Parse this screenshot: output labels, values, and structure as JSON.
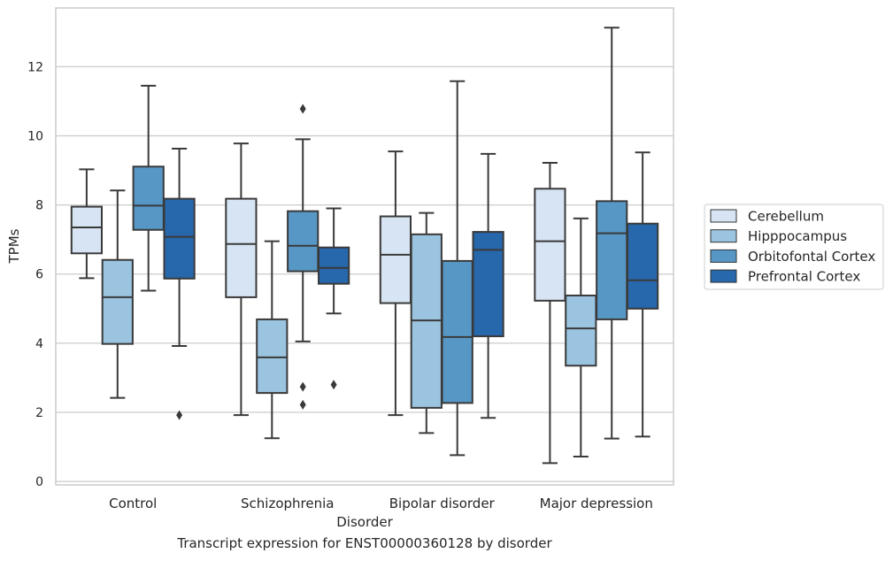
{
  "chart_data": {
    "type": "box",
    "xlabel": "Disorder",
    "ylabel": "TPMs",
    "caption": "Transcript expression for ENST00000360128 by disorder",
    "categories": [
      "Control",
      "Schizophrenia",
      "Bipolar disorder",
      "Major depression"
    ],
    "ylim": [
      -0.1,
      13.7
    ],
    "yticks": [
      0,
      2,
      4,
      6,
      8,
      10,
      12
    ],
    "grid": "horizontal",
    "legend_position": "right",
    "series": [
      {
        "name": "Cerebellum",
        "color": "#d6e4f3",
        "boxes": [
          {
            "whislo": 5.88,
            "q1": 6.6,
            "med": 7.35,
            "q3": 7.95,
            "whishi": 9.03,
            "fliers": []
          },
          {
            "whislo": 1.92,
            "q1": 5.33,
            "med": 6.87,
            "q3": 8.18,
            "whishi": 9.78,
            "fliers": []
          },
          {
            "whislo": 1.92,
            "q1": 5.16,
            "med": 6.56,
            "q3": 7.67,
            "whishi": 9.55,
            "fliers": []
          },
          {
            "whislo": 0.53,
            "q1": 5.23,
            "med": 6.95,
            "q3": 8.47,
            "whishi": 9.22,
            "fliers": []
          }
        ]
      },
      {
        "name": "Hipppocampus",
        "color": "#9ac4df",
        "boxes": [
          {
            "whislo": 2.42,
            "q1": 3.98,
            "med": 5.33,
            "q3": 6.41,
            "whishi": 8.42,
            "fliers": []
          },
          {
            "whislo": 1.25,
            "q1": 2.56,
            "med": 3.59,
            "q3": 4.69,
            "whishi": 6.95,
            "fliers": []
          },
          {
            "whislo": 1.4,
            "q1": 2.13,
            "med": 4.66,
            "q3": 7.15,
            "whishi": 7.77,
            "fliers": []
          },
          {
            "whislo": 0.72,
            "q1": 3.35,
            "med": 4.43,
            "q3": 5.38,
            "whishi": 7.61,
            "fliers": []
          }
        ]
      },
      {
        "name": "Orbitofontal Cortex",
        "color": "#5797c6",
        "boxes": [
          {
            "whislo": 5.52,
            "q1": 7.28,
            "med": 7.98,
            "q3": 9.11,
            "whishi": 11.45,
            "fliers": []
          },
          {
            "whislo": 4.05,
            "q1": 6.08,
            "med": 6.82,
            "q3": 7.82,
            "whishi": 9.9,
            "fliers": [
              10.78,
              2.74,
              2.22
            ]
          },
          {
            "whislo": 0.76,
            "q1": 2.27,
            "med": 4.18,
            "q3": 6.38,
            "whishi": 11.58,
            "fliers": []
          },
          {
            "whislo": 1.24,
            "q1": 4.69,
            "med": 7.18,
            "q3": 8.11,
            "whishi": 13.13,
            "fliers": []
          }
        ]
      },
      {
        "name": "Prefrontal Cortex",
        "color": "#2767ab",
        "boxes": [
          {
            "whislo": 3.92,
            "q1": 5.87,
            "med": 7.08,
            "q3": 8.18,
            "whishi": 9.63,
            "fliers": [
              1.92
            ]
          },
          {
            "whislo": 4.86,
            "q1": 5.72,
            "med": 6.18,
            "q3": 6.77,
            "whishi": 7.9,
            "fliers": [
              2.8
            ]
          },
          {
            "whislo": 1.84,
            "q1": 4.2,
            "med": 6.7,
            "q3": 7.22,
            "whishi": 9.48,
            "fliers": []
          },
          {
            "whislo": 1.3,
            "q1": 5.0,
            "med": 5.82,
            "q3": 7.46,
            "whishi": 9.52,
            "fliers": []
          }
        ]
      }
    ]
  }
}
